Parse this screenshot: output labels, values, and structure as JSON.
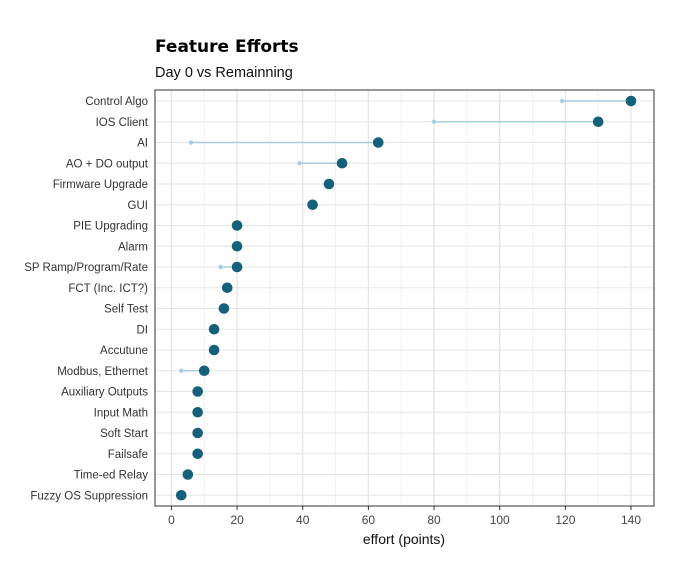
{
  "chart_data": {
    "type": "scatter",
    "subtype": "dumbbell",
    "title": "Feature Efforts",
    "subtitle": "Day 0 vs Remainning",
    "xlabel": "effort (points)",
    "ylabel": "",
    "xlim": [
      -5,
      147
    ],
    "x_ticks": [
      0,
      20,
      40,
      60,
      80,
      100,
      120,
      140
    ],
    "grid": true,
    "legend": "none",
    "colors": {
      "total": "#15607a",
      "remaining": "#a6cee3"
    },
    "categories": [
      "Control Algo",
      "IOS Client",
      "AI",
      "AO + DO output",
      "Firmware Upgrade",
      "GUI",
      "PIE Upgrading",
      "Alarm",
      "SP Ramp/Program/Rate",
      "FCT (Inc. ICT?)",
      "Self Test",
      "DI",
      "Accutune",
      "Modbus, Ethernet",
      "Auxiliary Outputs",
      "Input Math",
      "Soft Start",
      "Failsafe",
      "Time-ed Relay",
      "Fuzzy OS Suppression"
    ],
    "series": [
      {
        "values": [
          140,
          130,
          63,
          52,
          48,
          43,
          20,
          20,
          20,
          17,
          16,
          13,
          13,
          10,
          8,
          8,
          8,
          8,
          5,
          3
        ]
      },
      {
        "values": [
          119,
          80,
          6,
          39,
          48,
          43,
          20,
          20,
          15,
          17,
          16,
          13,
          13,
          3,
          8,
          8,
          8,
          8,
          5,
          3
        ]
      }
    ]
  }
}
